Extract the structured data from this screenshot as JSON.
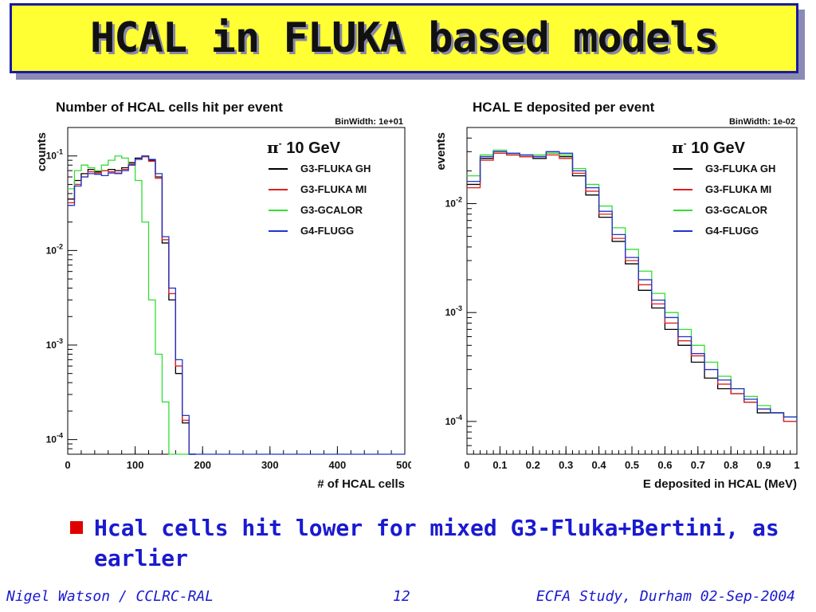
{
  "slide": {
    "title": "HCAL in FLUKA based models",
    "bullet": "Hcal cells hit lower for mixed G3-Fluka+Bertini, as earlier",
    "footer_left": "Nigel Watson / CCLRC-RAL",
    "footer_center": "12",
    "footer_right": "ECFA Study, Durham 02-Sep-2004"
  },
  "colors": {
    "G3-FLUKA GH": "#000000",
    "G3-FLUKA MI": "#e02020",
    "G3-GCALOR": "#33dd33",
    "G4-FLUGG": "#2233cc",
    "title_bg": "#ffff33",
    "title_border": "#1a1aa0",
    "bullet_text": "#1a1ad0",
    "bullet_marker": "#e00000"
  },
  "chart_data": [
    {
      "type": "line",
      "scale": "log-y",
      "title": "Number of HCAL cells hit per event",
      "binwidth_label": "BinWidth: 1e+01",
      "xlabel": "# of HCAL cells",
      "ylabel": "counts",
      "xlim": [
        0,
        500
      ],
      "ylim": [
        7e-05,
        0.2
      ],
      "xticks": [
        "0",
        "100",
        "200",
        "300",
        "400",
        "500"
      ],
      "yticks": [
        {
          "value": 0.1,
          "mant": "10",
          "exp": "-1"
        },
        {
          "value": 0.01,
          "mant": "10",
          "exp": "-2"
        },
        {
          "value": 0.001,
          "mant": "10",
          "exp": "-3"
        },
        {
          "value": 0.0001,
          "mant": "10",
          "exp": "-4"
        }
      ],
      "legend": {
        "header_symbol": "π",
        "header_sup": "-",
        "header_text": "10 GeV",
        "position": "top-right"
      },
      "series": [
        {
          "name": "G3-FLUKA GH",
          "x": [
            0,
            10,
            20,
            30,
            40,
            50,
            60,
            70,
            80,
            90,
            100,
            110,
            120,
            130,
            140,
            150,
            160,
            170,
            180
          ],
          "y": [
            0.035,
            0.055,
            0.065,
            0.072,
            0.068,
            0.07,
            0.072,
            0.07,
            0.075,
            0.085,
            0.095,
            0.1,
            0.09,
            0.06,
            0.012,
            0.003,
            0.0005,
            0.00015,
            7e-05
          ]
        },
        {
          "name": "G3-FLUKA MI",
          "x": [
            0,
            10,
            20,
            30,
            40,
            50,
            60,
            70,
            80,
            90,
            100,
            110,
            120,
            130,
            140,
            150,
            160,
            170,
            180
          ],
          "y": [
            0.032,
            0.05,
            0.06,
            0.068,
            0.066,
            0.07,
            0.068,
            0.066,
            0.072,
            0.082,
            0.092,
            0.098,
            0.088,
            0.058,
            0.013,
            0.0035,
            0.0006,
            0.00016,
            7e-05
          ]
        },
        {
          "name": "G3-GCALOR",
          "x": [
            0,
            10,
            20,
            30,
            40,
            50,
            60,
            70,
            80,
            90,
            100,
            110,
            120,
            130,
            140,
            150,
            160,
            170,
            180
          ],
          "y": [
            0.045,
            0.07,
            0.08,
            0.075,
            0.07,
            0.08,
            0.09,
            0.1,
            0.095,
            0.08,
            0.055,
            0.02,
            0.003,
            0.0008,
            0.00025,
            7e-05,
            7e-05,
            7e-05,
            7e-05
          ]
        },
        {
          "name": "G4-FLUGG",
          "x": [
            0,
            10,
            20,
            30,
            40,
            50,
            60,
            70,
            80,
            90,
            100,
            110,
            120,
            130,
            140,
            150,
            160,
            170,
            180
          ],
          "y": [
            0.03,
            0.048,
            0.06,
            0.065,
            0.064,
            0.062,
            0.066,
            0.065,
            0.07,
            0.08,
            0.092,
            0.1,
            0.092,
            0.065,
            0.014,
            0.004,
            0.0007,
            0.00018,
            7e-05
          ]
        }
      ]
    },
    {
      "type": "line",
      "scale": "log-y",
      "title": "HCAL E deposited per event",
      "binwidth_label": "BinWidth: 1e-02",
      "xlabel": "E deposited in HCAL (MeV)",
      "ylabel": "events",
      "xlim": [
        0,
        1
      ],
      "ylim": [
        5e-05,
        0.05
      ],
      "xticks": [
        "0",
        "0.1",
        "0.2",
        "0.3",
        "0.4",
        "0.5",
        "0.6",
        "0.7",
        "0.8",
        "0.9",
        "1"
      ],
      "yticks": [
        {
          "value": 0.01,
          "mant": "10",
          "exp": "-2"
        },
        {
          "value": 0.001,
          "mant": "10",
          "exp": "-3"
        },
        {
          "value": 0.0001,
          "mant": "10",
          "exp": "-4"
        }
      ],
      "legend": {
        "header_symbol": "π",
        "header_sup": "-",
        "header_text": "10 GeV",
        "position": "top-right"
      },
      "series": [
        {
          "name": "G3-FLUKA GH",
          "x": [
            0,
            0.04,
            0.08,
            0.12,
            0.16,
            0.2,
            0.24,
            0.28,
            0.32,
            0.36,
            0.4,
            0.44,
            0.48,
            0.52,
            0.56,
            0.6,
            0.64,
            0.68,
            0.72,
            0.76,
            0.8,
            0.84,
            0.88,
            0.92,
            0.96,
            1.0
          ],
          "y": [
            0.015,
            0.026,
            0.03,
            0.028,
            0.027,
            0.026,
            0.029,
            0.027,
            0.018,
            0.012,
            0.0075,
            0.0045,
            0.0028,
            0.0016,
            0.0011,
            0.0007,
            0.0005,
            0.00035,
            0.00025,
            0.0002,
            0.00018,
            0.00015,
            0.00012,
            0.00012,
            0.0001,
            0.0001
          ]
        },
        {
          "name": "G3-FLUKA MI",
          "x": [
            0,
            0.04,
            0.08,
            0.12,
            0.16,
            0.2,
            0.24,
            0.28,
            0.32,
            0.36,
            0.4,
            0.44,
            0.48,
            0.52,
            0.56,
            0.6,
            0.64,
            0.68,
            0.72,
            0.76,
            0.8,
            0.84,
            0.88,
            0.92,
            0.96,
            1.0
          ],
          "y": [
            0.014,
            0.025,
            0.029,
            0.028,
            0.027,
            0.027,
            0.028,
            0.026,
            0.019,
            0.013,
            0.008,
            0.0048,
            0.003,
            0.0018,
            0.0012,
            0.0008,
            0.00055,
            0.0004,
            0.0003,
            0.00022,
            0.00018,
            0.00015,
            0.00013,
            0.00012,
            0.0001,
            0.0001
          ]
        },
        {
          "name": "G3-GCALOR",
          "x": [
            0,
            0.04,
            0.08,
            0.12,
            0.16,
            0.2,
            0.24,
            0.28,
            0.32,
            0.36,
            0.4,
            0.44,
            0.48,
            0.52,
            0.56,
            0.6,
            0.64,
            0.68,
            0.72,
            0.76,
            0.8,
            0.84,
            0.88,
            0.92,
            0.96,
            1.0
          ],
          "y": [
            0.018,
            0.028,
            0.031,
            0.029,
            0.028,
            0.028,
            0.029,
            0.028,
            0.021,
            0.015,
            0.0095,
            0.006,
            0.0038,
            0.0024,
            0.0015,
            0.001,
            0.0007,
            0.0005,
            0.00035,
            0.00026,
            0.0002,
            0.00017,
            0.00014,
            0.00012,
            0.00011,
            0.0001
          ]
        },
        {
          "name": "G4-FLUGG",
          "x": [
            0,
            0.04,
            0.08,
            0.12,
            0.16,
            0.2,
            0.24,
            0.28,
            0.32,
            0.36,
            0.4,
            0.44,
            0.48,
            0.52,
            0.56,
            0.6,
            0.64,
            0.68,
            0.72,
            0.76,
            0.8,
            0.84,
            0.88,
            0.92,
            0.96,
            1.0
          ],
          "y": [
            0.016,
            0.027,
            0.03,
            0.029,
            0.028,
            0.027,
            0.03,
            0.029,
            0.02,
            0.014,
            0.0085,
            0.0052,
            0.0032,
            0.002,
            0.0013,
            0.0009,
            0.0006,
            0.00042,
            0.0003,
            0.00024,
            0.0002,
            0.00016,
            0.00013,
            0.00012,
            0.00011,
            0.0001
          ]
        }
      ]
    }
  ]
}
